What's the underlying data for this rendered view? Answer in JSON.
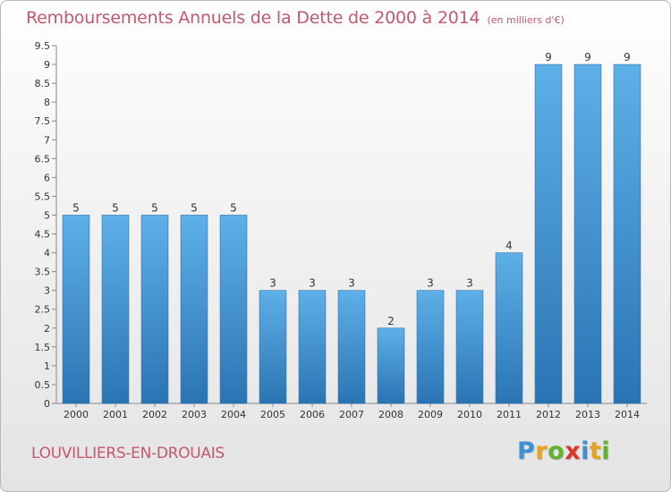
{
  "header": {
    "title": "Remboursements Annuels de la Dette de 2000 à 2014",
    "unit": "(en milliers d'€)"
  },
  "footer": {
    "commune": "LOUVILLIERS-EN-DROUAIS",
    "logo_letters": [
      "P",
      "r",
      "o",
      "x",
      "i",
      "t",
      "i"
    ],
    "logo_colors": [
      "#3d8fd6",
      "#e7a21b",
      "#63b12f",
      "#d9352a",
      "#3d8fd6",
      "#e7a21b",
      "#63b12f"
    ]
  },
  "chart_data": {
    "type": "bar",
    "title": "Remboursements Annuels de la Dette de 2000 à 2014",
    "subtitle": "(en milliers d'€)",
    "xlabel": "",
    "ylabel": "",
    "categories": [
      "2000",
      "2001",
      "2002",
      "2003",
      "2004",
      "2005",
      "2006",
      "2007",
      "2008",
      "2009",
      "2010",
      "2011",
      "2012",
      "2013",
      "2014"
    ],
    "values": [
      5,
      5,
      5,
      5,
      5,
      3,
      3,
      3,
      2,
      3,
      3,
      4,
      9,
      9,
      9
    ],
    "data_labels": [
      "5",
      "5",
      "5",
      "5",
      "5",
      "3",
      "3",
      "3",
      "2",
      "3",
      "3",
      "4",
      "9",
      "9",
      "9"
    ],
    "ylim": [
      0,
      9.5
    ],
    "yticks": [
      "0",
      "0.5",
      "1",
      "1.5",
      "2",
      "2.5",
      "3",
      "3.5",
      "4",
      "4.5",
      "5",
      "5.5",
      "6",
      "6.5",
      "7",
      "7.5",
      "8",
      "8.5",
      "9",
      "9.5"
    ],
    "grid": false,
    "legend": "none",
    "bar_color": "#3d95d6"
  }
}
